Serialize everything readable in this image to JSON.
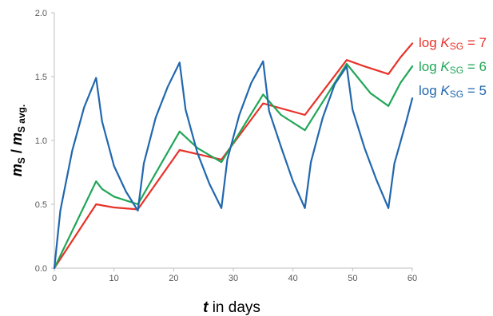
{
  "chart_data": {
    "type": "line",
    "xlabel": {
      "var": "t",
      "text": " in days"
    },
    "ylabel": {
      "num_var": "m",
      "num_sub": "S",
      "sep": " / ",
      "den_var": "m",
      "den_sub": "S avg."
    },
    "xlim": [
      0,
      60
    ],
    "ylim": [
      0.0,
      2.0
    ],
    "xticks": [
      0,
      10,
      20,
      30,
      40,
      50,
      60
    ],
    "yticks": [
      "0.0",
      "0.5",
      "1.0",
      "1.5",
      "2.0"
    ],
    "grid": false,
    "legend_placement": "right, at line ends",
    "series": [
      {
        "name": "log K_SG = 7",
        "label": {
          "prefix": "log ",
          "var": "K",
          "sub": "SG",
          "suffix": " = 7"
        },
        "color": "#e8322a",
        "x": [
          0,
          7,
          10,
          14,
          21,
          28,
          35,
          42,
          49,
          52,
          56,
          58,
          60
        ],
        "y": [
          0.0,
          0.5,
          0.475,
          0.46,
          0.925,
          0.85,
          1.29,
          1.2,
          1.63,
          1.58,
          1.52,
          1.65,
          1.76
        ]
      },
      {
        "name": "log K_SG = 6",
        "label": {
          "prefix": "log ",
          "var": "K",
          "sub": "SG",
          "suffix": " = 6"
        },
        "color": "#20a657",
        "x": [
          0,
          7,
          8,
          10,
          14,
          21,
          24,
          28,
          35,
          38,
          42,
          49,
          53,
          56,
          58,
          60
        ],
        "y": [
          0.0,
          0.68,
          0.62,
          0.56,
          0.5,
          1.07,
          0.94,
          0.83,
          1.36,
          1.2,
          1.08,
          1.6,
          1.37,
          1.27,
          1.45,
          1.58
        ]
      },
      {
        "name": "log K_SG = 5",
        "label": {
          "prefix": "log ",
          "var": "K",
          "sub": "SG",
          "suffix": " = 5"
        },
        "color": "#2167ae",
        "x": [
          0,
          1,
          3,
          5,
          7,
          8,
          10,
          12,
          14,
          15,
          17,
          19,
          21,
          22,
          24,
          26,
          28,
          29,
          31,
          33,
          35,
          36,
          38,
          40,
          42,
          43,
          45,
          47,
          49,
          50,
          52,
          54,
          56,
          57,
          59,
          60
        ],
        "y": [
          0.0,
          0.45,
          0.92,
          1.26,
          1.49,
          1.15,
          0.8,
          0.6,
          0.45,
          0.82,
          1.18,
          1.42,
          1.61,
          1.24,
          0.9,
          0.66,
          0.47,
          0.85,
          1.2,
          1.45,
          1.62,
          1.23,
          0.95,
          0.68,
          0.47,
          0.83,
          1.18,
          1.44,
          1.58,
          1.24,
          0.94,
          0.69,
          0.47,
          0.82,
          1.15,
          1.33
        ]
      }
    ]
  }
}
